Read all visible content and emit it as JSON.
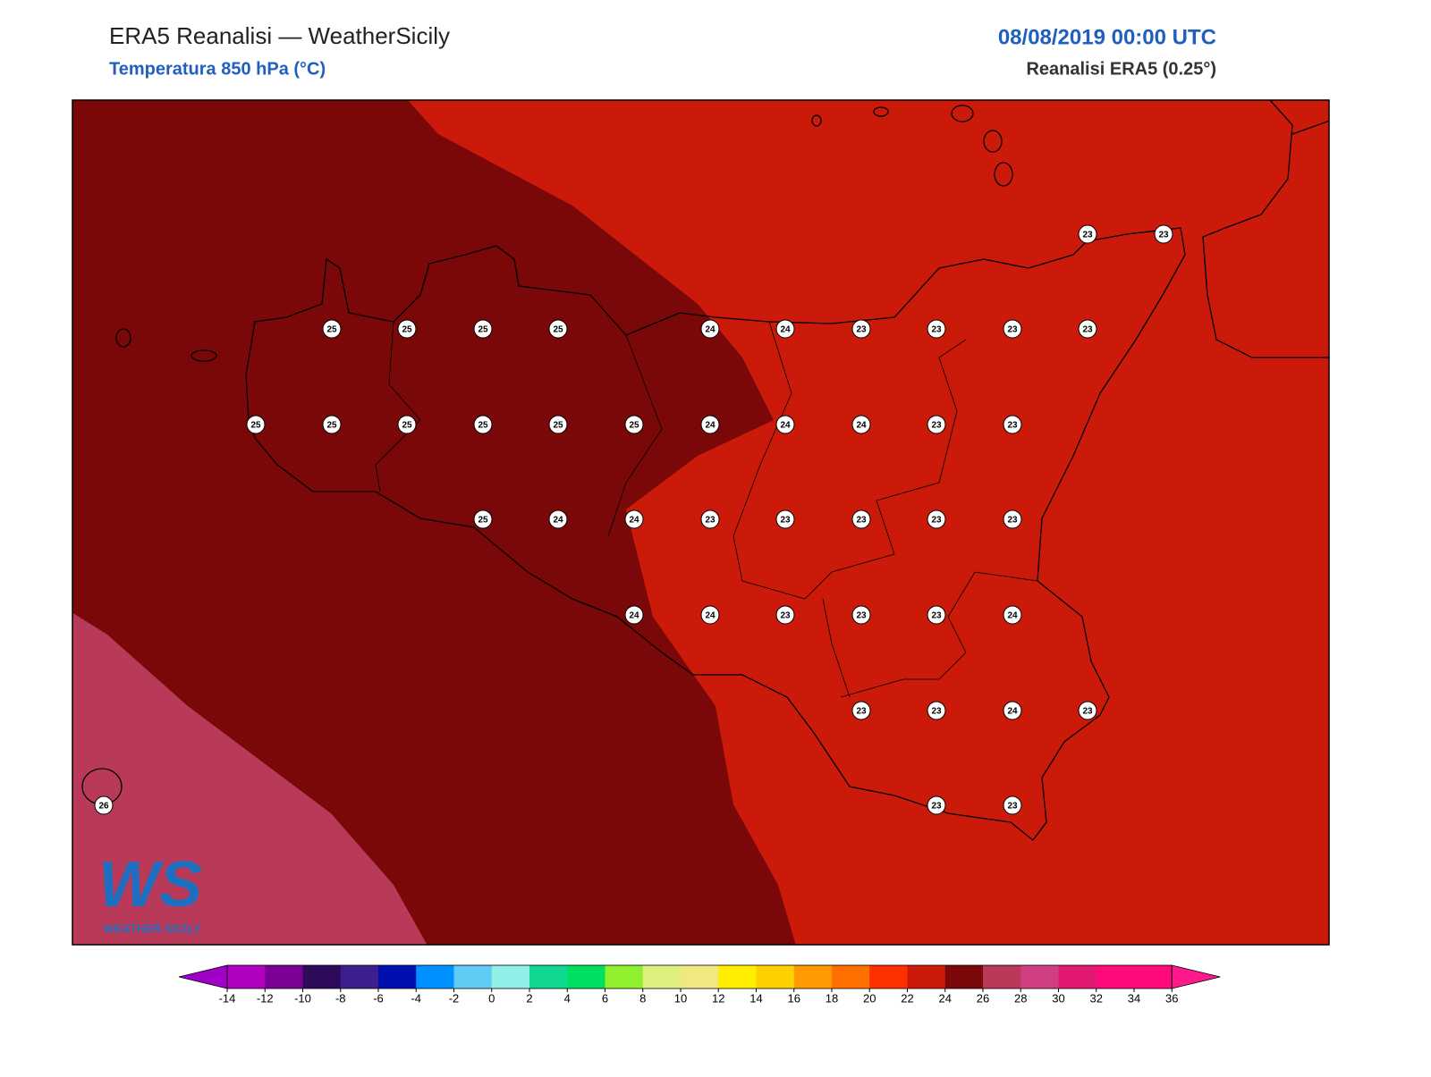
{
  "header": {
    "title": "ERA5 Reanalisi — WeatherSicily",
    "subtitle": "Temperatura 850 hPa (°C)",
    "date": "08/08/2019 00:00 UTC",
    "source": "Reanalisi ERA5 (0.25°)"
  },
  "points": [
    23,
    23,
    25,
    25,
    25,
    25,
    24,
    24,
    23,
    23,
    23,
    23,
    25,
    25,
    25,
    25,
    25,
    25,
    24,
    24,
    24,
    23,
    23,
    25,
    24,
    24,
    23,
    23,
    23,
    23,
    23,
    24,
    24,
    23,
    23,
    23,
    24,
    23,
    23,
    24,
    23,
    26,
    23,
    23
  ],
  "colorbar": {
    "ticks": [
      -14,
      -12,
      -10,
      -8,
      -6,
      -4,
      -2,
      0,
      2,
      4,
      6,
      8,
      10,
      12,
      14,
      16,
      18,
      20,
      22,
      24,
      26,
      28,
      30,
      32,
      34,
      36
    ],
    "colors": [
      "#b000c0",
      "#7a0096",
      "#2e0a5a",
      "#3c1e8c",
      "#0010b0",
      "#0090ff",
      "#60ccf5",
      "#90f0e8",
      "#10d890",
      "#00e060",
      "#90f030",
      "#e0f080",
      "#f0e880",
      "#ffee00",
      "#ffd000",
      "#ff9a00",
      "#ff7000",
      "#ff3000",
      "#cc1a0a",
      "#7a0808",
      "#b83a58",
      "#d04080",
      "#e01870",
      "#ff0a7a",
      "#ff0a7a"
    ],
    "under": "#a000c8",
    "over": "#ff1a8a"
  },
  "logo": {
    "mark": "WS",
    "text": "WEATHER SICILY"
  }
}
